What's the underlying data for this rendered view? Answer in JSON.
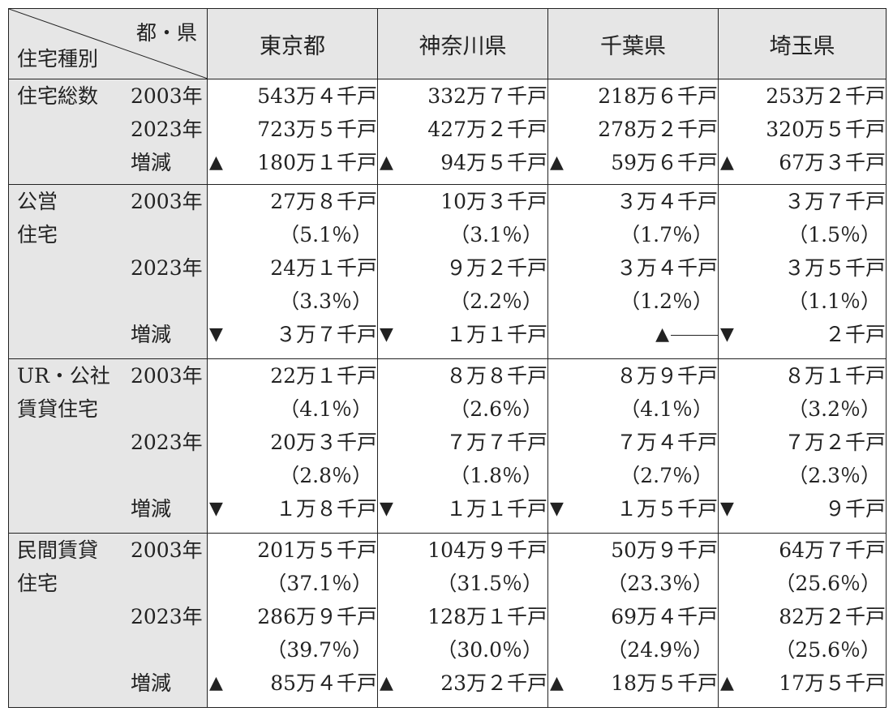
{
  "header": {
    "corner_top": "都・県",
    "corner_bottom": "住宅種別",
    "prefectures": [
      "東京都",
      "神奈川県",
      "千葉県",
      "埼玉県"
    ]
  },
  "sections": [
    {
      "category": [
        "住宅総数"
      ],
      "labels": [
        "2003年",
        "2023年",
        "増減"
      ],
      "cells": [
        {
          "y2003": "543万４千戸",
          "y2023": "723万５千戸",
          "change_arrow": "▲",
          "change_value": "180万１千戸"
        },
        {
          "y2003": "332万７千戸",
          "y2023": "427万２千戸",
          "change_arrow": "▲",
          "change_value": "94万５千戸"
        },
        {
          "y2003": "218万６千戸",
          "y2023": "278万２千戸",
          "change_arrow": "▲",
          "change_value": "59万６千戸"
        },
        {
          "y2003": "253万２千戸",
          "y2023": "320万５千戸",
          "change_arrow": "▲",
          "change_value": "67万３千戸"
        }
      ]
    },
    {
      "category": [
        "公営",
        "住宅"
      ],
      "labels": [
        "2003年",
        "2023年",
        "増減"
      ],
      "cells": [
        {
          "y2003": "27万８千戸",
          "y2003_pct": "（5.1％）",
          "y2023": "24万１千戸",
          "y2023_pct": "（3.3％）",
          "change_arrow": "▼",
          "change_value": "３万７千戸"
        },
        {
          "y2003": "10万３千戸",
          "y2003_pct": "（3.1％）",
          "y2023": "９万２千戸",
          "y2023_pct": "（2.2％）",
          "change_arrow": "▼",
          "change_value": "１万１千戸"
        },
        {
          "y2003": "３万４千戸",
          "y2003_pct": "（1.7％）",
          "y2023": "３万４千戸",
          "y2023_pct": "（1.2％）",
          "change_arrow": "▲",
          "change_value": ""
        },
        {
          "y2003": "３万７千戸",
          "y2003_pct": "（1.5％）",
          "y2023": "３万５千戸",
          "y2023_pct": "（1.1％）",
          "change_arrow": "▼",
          "change_value": "２千戸"
        }
      ]
    },
    {
      "category": [
        "UR・公社",
        "賃貸住宅"
      ],
      "labels": [
        "2003年",
        "2023年",
        "増減"
      ],
      "cells": [
        {
          "y2003": "22万１千戸",
          "y2003_pct": "（4.1％）",
          "y2023": "20万３千戸",
          "y2023_pct": "（2.8％）",
          "change_arrow": "▼",
          "change_value": "１万８千戸"
        },
        {
          "y2003": "８万８千戸",
          "y2003_pct": "（2.6％）",
          "y2023": "７万７千戸",
          "y2023_pct": "（1.8％）",
          "change_arrow": "▼",
          "change_value": "１万１千戸"
        },
        {
          "y2003": "８万９千戸",
          "y2003_pct": "（4.1％）",
          "y2023": "７万４千戸",
          "y2023_pct": "（2.7％）",
          "change_arrow": "▼",
          "change_value": "１万５千戸"
        },
        {
          "y2003": "８万１千戸",
          "y2003_pct": "（3.2％）",
          "y2023": "７万２千戸",
          "y2023_pct": "（2.3％）",
          "change_arrow": "▼",
          "change_value": "９千戸"
        }
      ]
    },
    {
      "category": [
        "民間賃貸",
        "住宅"
      ],
      "labels": [
        "2003年",
        "2023年",
        "増減"
      ],
      "cells": [
        {
          "y2003": "201万５千戸",
          "y2003_pct": "（37.1％）",
          "y2023": "286万９千戸",
          "y2023_pct": "（39.7％）",
          "change_arrow": "▲",
          "change_value": "85万４千戸"
        },
        {
          "y2003": "104万９千戸",
          "y2003_pct": "（31.5％）",
          "y2023": "128万１千戸",
          "y2023_pct": "（30.0％）",
          "change_arrow": "▲",
          "change_value": "23万２千戸"
        },
        {
          "y2003": "50万９千戸",
          "y2003_pct": "（23.3％）",
          "y2023": "69万４千戸",
          "y2023_pct": "（24.9％）",
          "change_arrow": "▲",
          "change_value": "18万５千戸"
        },
        {
          "y2003": "64万７千戸",
          "y2003_pct": "（25.6％）",
          "y2023": "82万２千戸",
          "y2023_pct": "（25.6％）",
          "change_arrow": "▲",
          "change_value": "17万５千戸"
        }
      ]
    }
  ]
}
